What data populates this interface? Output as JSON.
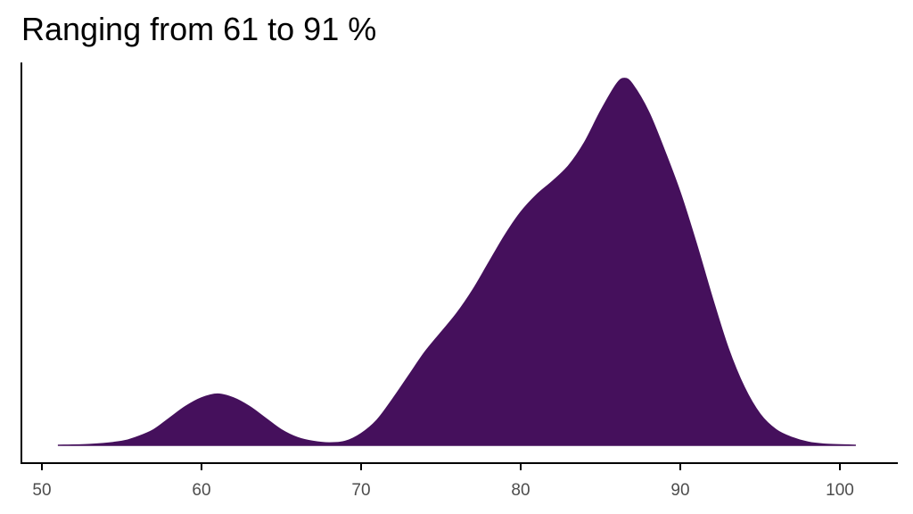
{
  "title": "Ranging from 61 to 91 %",
  "chart_data": {
    "type": "area",
    "title": "Ranging from 61 to 91 %",
    "xlabel": "",
    "ylabel": "",
    "xlim": [
      50,
      103.5
    ],
    "ylim": [
      0,
      1
    ],
    "x_ticks": [
      50,
      60,
      70,
      80,
      90,
      100
    ],
    "grid": false,
    "legend": "none",
    "fill_color": "#45105c",
    "series": [
      {
        "x": [
          51,
          53,
          55,
          56,
          57,
          58,
          59,
          60,
          61,
          62,
          63,
          64,
          65,
          66,
          67,
          68,
          69,
          70,
          71,
          72,
          73,
          74,
          75,
          76,
          77,
          78,
          79,
          80,
          81,
          82,
          83,
          84,
          85,
          86,
          86.5,
          87,
          88,
          89,
          90,
          91,
          92,
          93,
          94,
          95,
          96,
          97,
          98,
          99,
          101
        ],
        "y": [
          0,
          0.002,
          0.01,
          0.022,
          0.04,
          0.07,
          0.1,
          0.122,
          0.132,
          0.122,
          0.1,
          0.07,
          0.04,
          0.02,
          0.01,
          0.006,
          0.01,
          0.03,
          0.065,
          0.12,
          0.18,
          0.24,
          0.29,
          0.34,
          0.4,
          0.47,
          0.54,
          0.6,
          0.645,
          0.68,
          0.72,
          0.78,
          0.86,
          0.93,
          0.945,
          0.93,
          0.86,
          0.76,
          0.65,
          0.52,
          0.38,
          0.25,
          0.15,
          0.08,
          0.04,
          0.02,
          0.008,
          0.003,
          0
        ]
      }
    ]
  }
}
